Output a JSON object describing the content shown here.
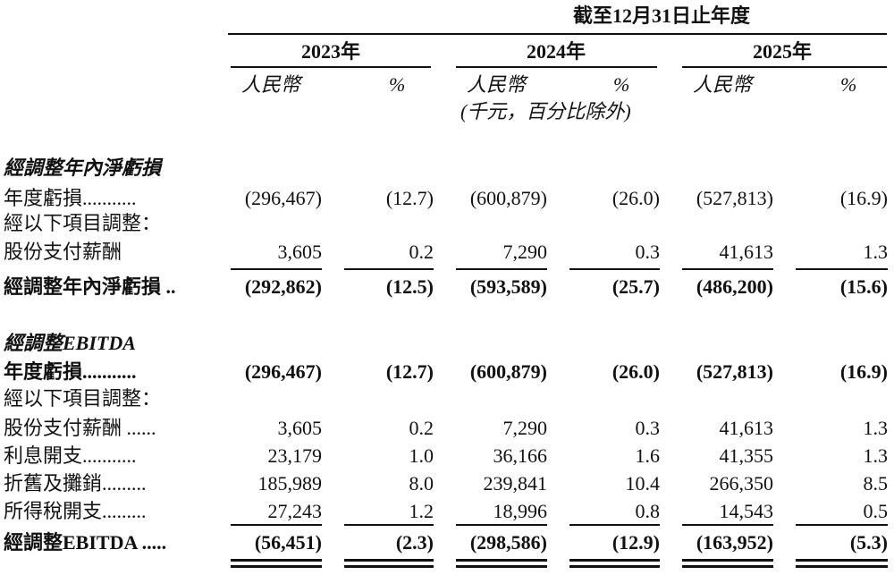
{
  "header": {
    "period": "截至12月31日止年度",
    "years": [
      "2023年",
      "2024年",
      "2025年"
    ],
    "currency": "人民幣",
    "percent": "%",
    "unit_note": "(千元，百分比除外)"
  },
  "sections": [
    {
      "title": "經調整年內淨虧損",
      "rows": [
        {
          "label": "年度虧損...........",
          "values": [
            "(296,467)",
            "(12.7)",
            "(600,879)",
            "(26.0)",
            "(527,813)",
            "(16.9)"
          ]
        },
        {
          "label": "經以下項目調整："
        },
        {
          "label": "股份支付薪酬",
          "values": [
            "3,605",
            "0.2",
            "7,290",
            "0.3",
            "41,613",
            "1.3"
          ]
        },
        {
          "label": "經調整年內淨虧損 ..",
          "values": [
            "(292,862)",
            "(12.5)",
            "(593,589)",
            "(25.7)",
            "(486,200)",
            "(15.6)"
          ]
        }
      ]
    },
    {
      "title": "經調整EBITDA",
      "rows": [
        {
          "label": "年度虧損...........",
          "values": [
            "(296,467)",
            "(12.7)",
            "(600,879)",
            "(26.0)",
            "(527,813)",
            "(16.9)"
          ]
        },
        {
          "label": "經以下項目調整："
        },
        {
          "label": "股份支付薪酬 ......",
          "values": [
            "3,605",
            "0.2",
            "7,290",
            "0.3",
            "41,613",
            "1.3"
          ]
        },
        {
          "label": "利息開支...........",
          "values": [
            "23,179",
            "1.0",
            "36,166",
            "1.6",
            "41,355",
            "1.3"
          ]
        },
        {
          "label": "折舊及攤銷.........",
          "values": [
            "185,989",
            "8.0",
            "239,841",
            "10.4",
            "266,350",
            "8.5"
          ]
        },
        {
          "label": "所得稅開支.........",
          "values": [
            "27,243",
            "1.2",
            "18,996",
            "0.8",
            "14,543",
            "0.5"
          ]
        },
        {
          "label": "經調整EBITDA .....",
          "values": [
            "(56,451)",
            "(2.3)",
            "(298,586)",
            "(12.9)",
            "(163,952)",
            "(5.3)"
          ]
        }
      ]
    }
  ]
}
